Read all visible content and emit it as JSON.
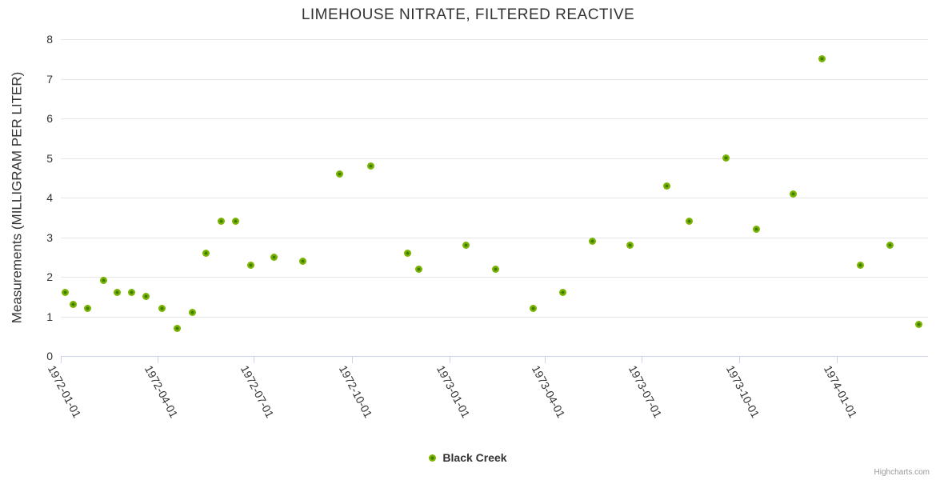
{
  "title": "LIMEHOUSE NITRATE, FILTERED REACTIVE",
  "credits": {
    "label": "Highcharts.com"
  },
  "colors": {
    "background": "#ffffff",
    "gridline": "#e6e6e6",
    "axis_line": "#ccd6eb",
    "text": "#333333",
    "credits_text": "#999999",
    "series_outer": "#7ab400",
    "series_inner": "#3e7d00"
  },
  "chart_data": {
    "type": "scatter",
    "title": "LIMEHOUSE NITRATE, FILTERED REACTIVE",
    "xlabel": "",
    "ylabel": "Measurements (MILLIGRAM PER LITER)",
    "ylim": [
      0,
      8
    ],
    "yticks": [
      0,
      1,
      2,
      3,
      4,
      5,
      6,
      7,
      8
    ],
    "grid": true,
    "legend_position": "bottom-center",
    "x_axis": {
      "type": "datetime",
      "min": "1972-01-01",
      "max": "1974-03-28",
      "tick_labels": [
        "1972-01-01",
        "1972-04-01",
        "1972-07-01",
        "1972-10-01",
        "1973-01-01",
        "1973-04-01",
        "1973-07-01",
        "1973-10-01",
        "1974-01-01"
      ]
    },
    "series": [
      {
        "name": "Black Creek",
        "color": "#7ab400",
        "marker_center_color": "#3e7d00",
        "points": [
          [
            "1972-01-05",
            1.6
          ],
          [
            "1972-01-13",
            1.3
          ],
          [
            "1972-01-26",
            1.2
          ],
          [
            "1972-02-10",
            1.9
          ],
          [
            "1972-02-23",
            1.6
          ],
          [
            "1972-03-08",
            1.6
          ],
          [
            "1972-03-21",
            1.5
          ],
          [
            "1972-04-05",
            1.2
          ],
          [
            "1972-04-20",
            0.7
          ],
          [
            "1972-05-04",
            1.1
          ],
          [
            "1972-05-17",
            2.6
          ],
          [
            "1972-05-31",
            3.4
          ],
          [
            "1972-06-14",
            3.4
          ],
          [
            "1972-06-28",
            2.3
          ],
          [
            "1972-07-20",
            2.5
          ],
          [
            "1972-08-16",
            2.4
          ],
          [
            "1972-09-20",
            4.6
          ],
          [
            "1972-10-19",
            4.8
          ],
          [
            "1972-11-23",
            2.6
          ],
          [
            "1972-12-03",
            2.2
          ],
          [
            "1973-01-17",
            2.8
          ],
          [
            "1973-02-14",
            2.2
          ],
          [
            "1973-03-21",
            1.2
          ],
          [
            "1973-04-18",
            1.6
          ],
          [
            "1973-05-16",
            2.9
          ],
          [
            "1973-06-20",
            2.8
          ],
          [
            "1973-07-25",
            4.3
          ],
          [
            "1973-08-15",
            3.4
          ],
          [
            "1973-09-19",
            5.0
          ],
          [
            "1973-10-17",
            3.2
          ],
          [
            "1973-11-21",
            4.1
          ],
          [
            "1973-12-18",
            7.5
          ],
          [
            "1974-01-23",
            2.3
          ],
          [
            "1974-02-20",
            2.8
          ],
          [
            "1974-03-19",
            0.8
          ]
        ]
      }
    ]
  }
}
